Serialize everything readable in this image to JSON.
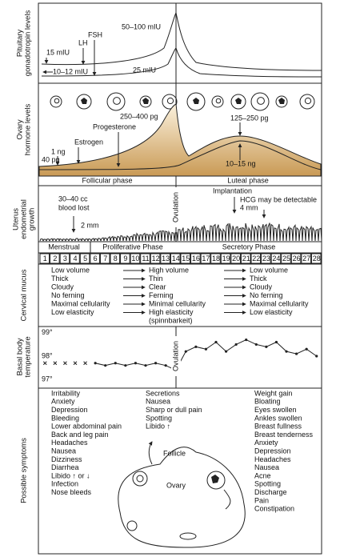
{
  "sections": [
    {
      "lines": [
        "Pituitary",
        "gonadotropin levels"
      ]
    },
    {
      "lines": [
        "Ovary",
        "hormone levels"
      ]
    },
    {
      "lines": [
        "Uterus",
        "endometrial",
        "growth"
      ]
    },
    {
      "lines": [
        "Cervical mucus"
      ]
    },
    {
      "lines": [
        "Basal body",
        "temperature"
      ]
    },
    {
      "lines": [
        "Possible symptoms"
      ]
    }
  ],
  "pituitary": {
    "peak": "50–100 mIU",
    "fsh": "FSH",
    "lh": "LH",
    "base_high": "15 mIU",
    "base_low": "10–12 mIU",
    "luteal": "25 mIU"
  },
  "ovary": {
    "estrogen_peak": "250–400 pg",
    "progesterone": "Progesterone",
    "estrogen": "Estrogen",
    "progesterone_base": "1 ng",
    "estrogen_base": "40 pg",
    "luteal_estrogen": "125–250 pg",
    "luteal_progesterone": "10–15 ng",
    "phases": [
      "Follicular phase",
      "Luteal phase"
    ]
  },
  "ovulation": "Ovulation",
  "uterus": {
    "implantation": "Implantation",
    "hcg": "HCG may be detectable",
    "thickness_luteal": "4 mm",
    "blood": [
      "30–40 cc",
      "blood lost"
    ],
    "thickness_early": "2 mm",
    "phases": [
      "Menstrual",
      "Proliferative Phase",
      "Secretory Phase"
    ]
  },
  "days": [
    1,
    2,
    3,
    4,
    5,
    6,
    7,
    8,
    9,
    10,
    11,
    12,
    13,
    14,
    15,
    16,
    17,
    18,
    19,
    20,
    21,
    22,
    23,
    24,
    25,
    26,
    27,
    28
  ],
  "cervical_mucus": {
    "columns": [
      [
        "Low volume",
        "Thick",
        "Cloudy",
        "No ferning",
        "Maximal cellularity",
        "Low elasticity"
      ],
      [
        "High volume",
        "Thin",
        "Clear",
        "Ferning",
        "Minimal cellularity",
        "High elasticity",
        "(spinnbarkeit)"
      ],
      [
        "Low volume",
        "Thick",
        "Cloudy",
        "No ferning",
        "Maximal cellularity",
        "Low elasticity"
      ]
    ]
  },
  "temperature": {
    "ylim": [
      96.8,
      99.2
    ],
    "yticks": [
      {
        "value": 99,
        "label": "99°"
      },
      {
        "value": 98,
        "label": "98°"
      },
      {
        "value": 97,
        "label": "97°"
      }
    ],
    "series": [
      {
        "marker": "x",
        "values": [
          97.7,
          97.7,
          97.7,
          97.7,
          97.7,
          null,
          null,
          null,
          null,
          null,
          null,
          null,
          null,
          null,
          null,
          null,
          null,
          null,
          null,
          null,
          null,
          null,
          null,
          null,
          null,
          null,
          null,
          null
        ]
      },
      {
        "marker": "dot",
        "values": [
          null,
          null,
          null,
          null,
          null,
          97.7,
          97.6,
          97.7,
          97.6,
          97.7,
          97.6,
          97.7,
          97.6,
          97.4,
          98.2,
          98.4,
          98.3,
          98.6,
          98.2,
          98.5,
          98.7,
          98.5,
          98.4,
          98.6,
          98.2,
          98.1,
          98.3,
          98.0
        ]
      }
    ]
  },
  "symptoms": {
    "columns": [
      [
        "Irritability",
        "Anxiety",
        "Depression",
        "Bleeding",
        "Lower abdominal pain",
        "Back and leg pain",
        "Headaches",
        "Nausea",
        "Dizziness",
        "Diarrhea",
        "Libido ↑ or ↓",
        "Infection",
        "Nose bleeds"
      ],
      [
        "Secretions",
        "Nausea",
        "Sharp or dull pain",
        "Spotting",
        "Libido ↑"
      ],
      [
        "Weight gain",
        "Bloating",
        "Eyes swollen",
        "Ankles swollen",
        "Breast fullness",
        "Breast tenderness",
        "Anxiety",
        "Depression",
        "Headaches",
        "Nausea",
        "Acne",
        "Spotting",
        "Discharge",
        "Pain",
        "Constipation"
      ]
    ],
    "diagram": {
      "follicle": "Follicle",
      "ovary": "Ovary"
    }
  }
}
